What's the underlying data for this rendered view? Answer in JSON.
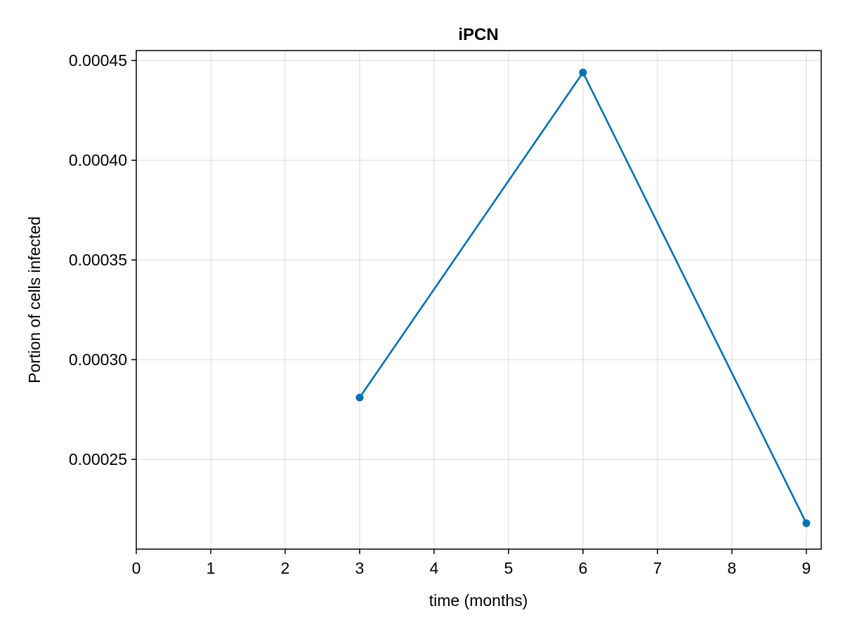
{
  "chart_data": {
    "type": "line",
    "title": "iPCN",
    "xlabel": "time (months)",
    "ylabel": "Portion of cells infected",
    "xlim": [
      0,
      9.2
    ],
    "ylim": [
      0.000205,
      0.000455
    ],
    "xticks": [
      0,
      1,
      2,
      3,
      4,
      5,
      6,
      7,
      8,
      9
    ],
    "xtick_labels": [
      "0",
      "1",
      "2",
      "3",
      "4",
      "5",
      "6",
      "7",
      "8",
      "9"
    ],
    "yticks": [
      0.00025,
      0.0003,
      0.00035,
      0.0004,
      0.00045
    ],
    "ytick_labels": [
      "0.00025",
      "0.00030",
      "0.00035",
      "0.00040",
      "0.00045"
    ],
    "grid": true,
    "series": [
      {
        "color": "#0072b2",
        "markers": true,
        "x": [
          3,
          6,
          9
        ],
        "y": [
          0.000281,
          0.000444,
          0.000218
        ]
      }
    ]
  }
}
